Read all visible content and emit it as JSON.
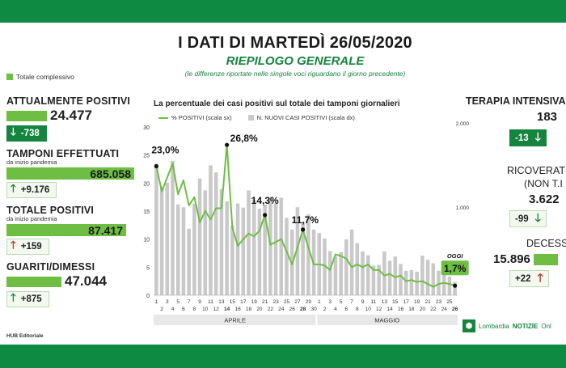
{
  "header": {
    "title": "I DATI DI MARTEDÌ 26/05/2020",
    "subtitle": "RIEPILOGO GENERALE",
    "note": "(le differenze riportate nelle singole voci riguardano il giorno precedente)"
  },
  "legend_total": "Totale complessivo",
  "colors": {
    "green_dark": "#14843e",
    "green_light": "#6fbe44",
    "bar_gray": "#c9c9c9",
    "band": "#0f8a43",
    "red": "#c0392b"
  },
  "left": {
    "attualmente_positivi": {
      "label": "ATTUALMENTE POSITIVI",
      "value": "24.477",
      "delta": "-738",
      "delta_icon": "arrow-down-icon"
    },
    "tamponi": {
      "label": "TAMPONI EFFETTUATI",
      "subnote": "da inizio pandemia",
      "value": "685.058",
      "delta": "+9.176",
      "delta_icon": "arrow-up-icon"
    },
    "totale_positivi": {
      "label": "TOTALE POSITIVI",
      "subnote": "da inizio pandemia",
      "value": "87.417",
      "delta": "+159",
      "delta_icon": "arrow-up-icon"
    },
    "guariti": {
      "label": "GUARITI/DIMESSI",
      "value": "47.044",
      "delta": "+875",
      "delta_icon": "arrow-up-icon"
    }
  },
  "right": {
    "terapia": {
      "label": "TERAPIA INTENSIVA",
      "value": "183",
      "delta": "-13"
    },
    "ricoverati": {
      "label": "RICOVERAT",
      "label2": "(NON T.I",
      "value": "3.622",
      "delta": "-99"
    },
    "decessi": {
      "label": "DECESS",
      "value": "15.896",
      "delta": "+22"
    }
  },
  "footer": {
    "credit": "HUB Editoriale",
    "brand": "Lombardia",
    "brand_bold": "NOTIZIE",
    "brand_tail": "Onl"
  },
  "chart_data": {
    "type": "bar",
    "title": "La percentuale dei casi positivi sul totale dei tamponi giornalieri",
    "legend": {
      "line": "% POSITIVI (scala sx)",
      "bars": "N. NUOVI CASI POSITIVI (scala dx)"
    },
    "ylim_left": [
      0,
      30
    ],
    "yticks_left": [
      0,
      5,
      10,
      15,
      20,
      25,
      30
    ],
    "ylim_right": [
      0,
      2000
    ],
    "yticks_right_labels": [
      "1.000",
      "2.000"
    ],
    "day_ticks_odd": [
      "1",
      "3",
      "5",
      "7",
      "9",
      "11",
      "13",
      "15",
      "17",
      "19",
      "21",
      "23",
      "25",
      "27",
      "29",
      "1",
      "3",
      "5",
      "7",
      "9",
      "11",
      "13",
      "15",
      "17",
      "19",
      "21",
      "23",
      "25"
    ],
    "day_ticks_even": [
      "2",
      "4",
      "6",
      "8",
      "10",
      "12",
      "14",
      "16",
      "18",
      "20",
      "22",
      "24",
      "26",
      "28",
      "30",
      "2",
      "4",
      "6",
      "8",
      "10",
      "12",
      "14",
      "16",
      "18",
      "20",
      "22",
      "24",
      "26"
    ],
    "months": [
      "APRILE",
      "MAGGIO"
    ],
    "dates": [
      "1/4",
      "2/4",
      "3/4",
      "4/4",
      "5/4",
      "6/4",
      "7/4",
      "8/4",
      "9/4",
      "10/4",
      "11/4",
      "12/4",
      "13/4",
      "14/4",
      "15/4",
      "16/4",
      "17/4",
      "18/4",
      "19/4",
      "20/4",
      "21/4",
      "22/4",
      "23/4",
      "24/4",
      "25/4",
      "26/4",
      "27/4",
      "28/4",
      "29/4",
      "30/4",
      "1/5",
      "2/5",
      "3/5",
      "4/5",
      "5/5",
      "6/5",
      "7/5",
      "8/5",
      "9/5",
      "10/5",
      "11/5",
      "12/5",
      "13/5",
      "14/5",
      "15/5",
      "16/5",
      "17/5",
      "18/5",
      "19/5",
      "20/5",
      "21/5",
      "22/5",
      "23/5",
      "24/5",
      "25/5",
      "26/5"
    ],
    "series": [
      {
        "name": "% POSITIVI (scala sx)",
        "type": "line",
        "values": [
          23.0,
          18.5,
          21.0,
          23.5,
          18.0,
          20.5,
          16.0,
          17.5,
          13.0,
          15.0,
          13.5,
          15.5,
          15.5,
          26.8,
          12.0,
          8.8,
          10.0,
          11.0,
          10.5,
          11.5,
          14.3,
          9.0,
          9.5,
          10.0,
          7.8,
          5.5,
          8.5,
          11.7,
          8.5,
          5.5,
          5.5,
          5.3,
          4.5,
          7.3,
          7.0,
          6.5,
          5.0,
          5.5,
          5.0,
          5.5,
          4.5,
          4.5,
          3.5,
          3.8,
          3.2,
          3.5,
          2.5,
          2.7,
          2.4,
          2.5,
          2.0,
          1.5,
          2.0,
          2.2,
          2.0,
          1.7
        ]
      },
      {
        "name": "N. NUOVI CASI POSITIVI (scala dx)",
        "type": "bar",
        "values": [
          1565,
          1292,
          1337,
          1598,
          1079,
          1046,
          791,
          1089,
          1388,
          1246,
          1544,
          1460,
          1262,
          1116,
          827,
          1091,
          1041,
          1246,
          1134,
          1029,
          1077,
          1161,
          1091,
          1158,
          920,
          780,
          1046,
          869,
          960,
          779,
          739,
          675,
          526,
          461,
          514,
          664,
          781,
          620,
          520,
          474,
          350,
          360,
          520,
          410,
          460,
          370,
          290,
          300,
          280,
          470,
          420,
          380,
          290,
          380,
          220,
          159
        ]
      }
    ],
    "annotations": [
      {
        "label": "23,0%",
        "x": "1/4",
        "y": 23.0
      },
      {
        "label": "26,8%",
        "x": "14/4",
        "y": 26.8
      },
      {
        "label": "14,3%",
        "x": "21/4",
        "y": 14.3
      },
      {
        "label": "11,7%",
        "x": "28/4",
        "y": 11.7
      },
      {
        "label": "1,7%",
        "x": "26/5",
        "y": 1.7,
        "tag": "OGGI"
      }
    ]
  }
}
